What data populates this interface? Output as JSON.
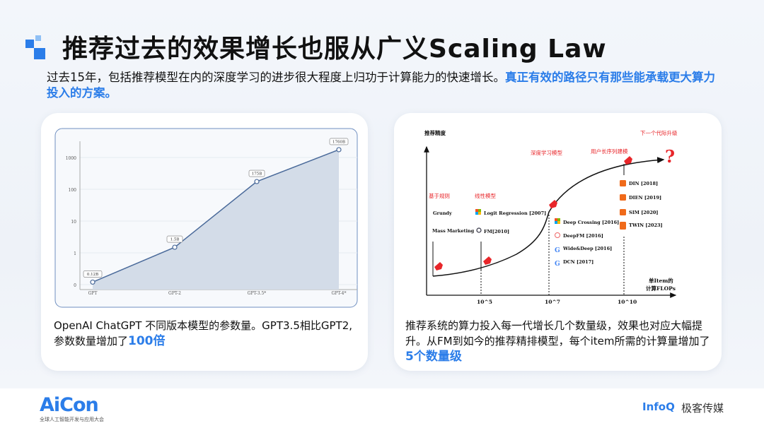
{
  "slide": {
    "title": "推荐过去的效果增长也服从广义Scaling Law",
    "subtitle": "过去15年，包括推荐模型在内的深度学习的进步很大程度上归功于计算能力的快速增长。",
    "subtitle_highlight": "真正有效的路径只有那些能承载更大算力投入的方案。"
  },
  "left_card": {
    "caption_prefix": "OpenAI ChatGPT 不同版本模型的参数量。GPT3.5相比GPT2,参数数量增加了",
    "caption_highlight": "100倍"
  },
  "right_card": {
    "caption_prefix": "推荐系统的算力投入每一代增长几个数量级，效果也对应大幅提升。从FM到如今的推荐精排模型，每个item所需的计算量增加了",
    "caption_highlight": "5个数量级"
  },
  "chart_data": {
    "type": "area",
    "categories": [
      "GPT",
      "GPT-2",
      "GPT-3.5*",
      "GPT-4*"
    ],
    "values": [
      0.12,
      1.5,
      175,
      1760
    ],
    "data_labels": [
      "0.12B",
      "1.5B",
      "175B",
      "1760B"
    ],
    "y_scale": "log",
    "y_ticks": [
      "0",
      "1",
      "10",
      "100",
      "1000"
    ],
    "grid": true,
    "color": "#4a6a9a",
    "fill": "#d3dce8"
  },
  "diagram": {
    "y_label": "推荐精度",
    "x_label_1": "单Item的",
    "x_label_2": "计算FLOPs",
    "x_ticks": [
      "10^5",
      "10^7",
      "10^10"
    ],
    "stages": [
      "基于规则",
      "线性模型",
      "深度学习模型",
      "用户长序列建模",
      "下一个代际升级"
    ],
    "rule_models": [
      "Grundy",
      "Mass Marketing"
    ],
    "linear_models": [
      "Logit Regression [2007]",
      "FM[2010]"
    ],
    "deep_models": [
      "Deep Crossing [2016]",
      "DeepFM [2016]",
      "Wide&Deep [2016]",
      "DCN [2017]"
    ],
    "seq_models": [
      "DIN [2018]",
      "DIEN [2019]",
      "SIM [2020]",
      "TWIN [2023]"
    ],
    "question": "?",
    "accent": "#e8262a"
  },
  "footer": {
    "brand": "AiCon",
    "brand_sub": "全球人工智能开发与应用大会",
    "partner": "InfoQ",
    "partner_cn": "极客传媒"
  }
}
